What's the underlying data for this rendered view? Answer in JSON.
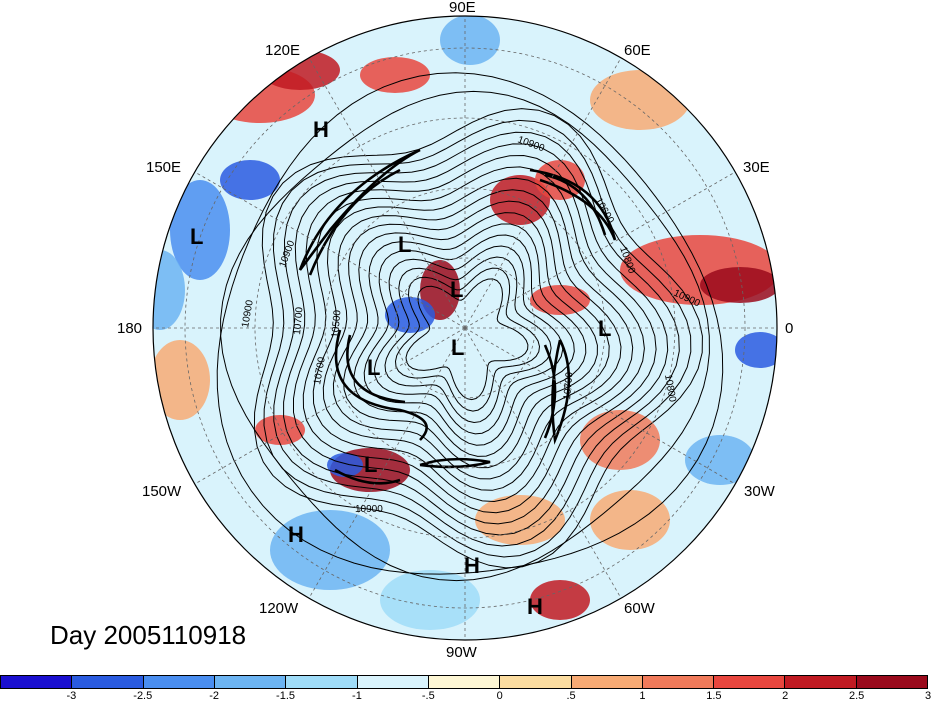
{
  "title": "Day 2005110918",
  "longitude_labels": {
    "lon_90e": "90E",
    "lon_120e": "120E",
    "lon_60e": "60E",
    "lon_150e": "150E",
    "lon_30e": "30E",
    "lon_180": "180",
    "lon_0": "0",
    "lon_150w": "150W",
    "lon_30w": "30W",
    "lon_120w": "120W",
    "lon_60w": "60W",
    "lon_90w": "90W"
  },
  "pressure_centers": [
    {
      "label": "H"
    },
    {
      "label": "L"
    },
    {
      "label": "L"
    },
    {
      "label": "L"
    },
    {
      "label": "L"
    },
    {
      "label": "L"
    },
    {
      "label": "L"
    },
    {
      "label": "L"
    },
    {
      "label": "H"
    },
    {
      "label": "H"
    },
    {
      "label": "H"
    }
  ],
  "contour_labels": [
    "10900",
    "10900",
    "10800",
    "10900",
    "10900",
    "10700",
    "10500",
    "10700",
    "10800",
    "10900",
    "10700",
    "10600"
  ],
  "colorbar": {
    "colors": [
      "#1a0fd0",
      "#2a5be0",
      "#4a8ef0",
      "#6cb4f2",
      "#9fdcf8",
      "#d9f3fc",
      "#fdf6d4",
      "#fbdca0",
      "#f7aa74",
      "#f07a5a",
      "#e8463e",
      "#c01a22",
      "#9a0a1c"
    ],
    "ticks": [
      "-3",
      "-2.5",
      "-2",
      "-1.5",
      "-1",
      "-.5",
      "0",
      ".5",
      "1",
      "1.5",
      "2",
      "2.5",
      "3"
    ]
  }
}
